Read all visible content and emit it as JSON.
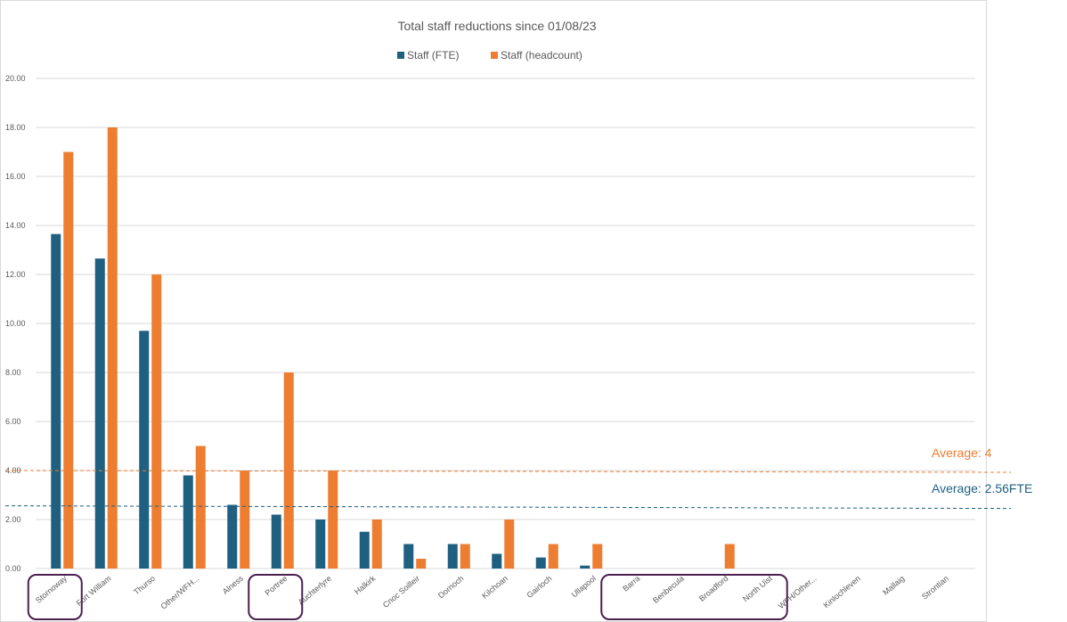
{
  "chart_data": {
    "type": "bar",
    "title": "Total staff reductions since 01/08/23",
    "xlabel": "",
    "ylabel": "",
    "ylim": [
      0,
      20
    ],
    "yticks": [
      "0.00",
      "2.00",
      "4.00",
      "6.00",
      "8.00",
      "10.00",
      "12.00",
      "14.00",
      "16.00",
      "18.00",
      "20.00"
    ],
    "grid": true,
    "legend_position": "top",
    "categories": [
      "Stornoway",
      "Fort William",
      "Thurso",
      "Other/WFH...",
      "Alness",
      "Portree",
      "Auchterlyre",
      "Halkirk",
      "Cnoc Soilleir",
      "Dornoch",
      "Kilchoan",
      "Gairloch",
      "Ullapool",
      "Barra",
      "Benbecula",
      "Broadford",
      "North Uist",
      "WFH/Other...",
      "Kinlochleven",
      "Mallaig",
      "Strontian"
    ],
    "series": [
      {
        "name": "Staff (FTE)",
        "color": "#1f5f80",
        "values": [
          13.65,
          12.65,
          9.7,
          3.8,
          2.6,
          2.2,
          2.0,
          1.5,
          1.0,
          1.0,
          0.6,
          0.45,
          0.12,
          0,
          0,
          0,
          0,
          0,
          0,
          0,
          0
        ]
      },
      {
        "name": "Staff (headcount)",
        "color": "#ed7d31",
        "values": [
          17,
          18,
          12,
          5,
          4,
          8,
          4,
          2,
          0.4,
          1,
          2,
          1,
          1,
          0,
          0,
          1,
          0,
          0,
          0,
          0,
          0
        ]
      }
    ],
    "reference_lines": [
      {
        "label": "Average: 4",
        "value": 4,
        "color": "#ed7d31"
      },
      {
        "label": "Average: 2.56FTE",
        "value": 2.56,
        "color": "#1f5f80"
      }
    ],
    "highlighted_categories": [
      [
        "Stornoway"
      ],
      [
        "Portree"
      ],
      [
        "Barra",
        "Benbecula",
        "Broadford",
        "North Uist"
      ]
    ],
    "highlight_color": "#4b1f4f"
  }
}
